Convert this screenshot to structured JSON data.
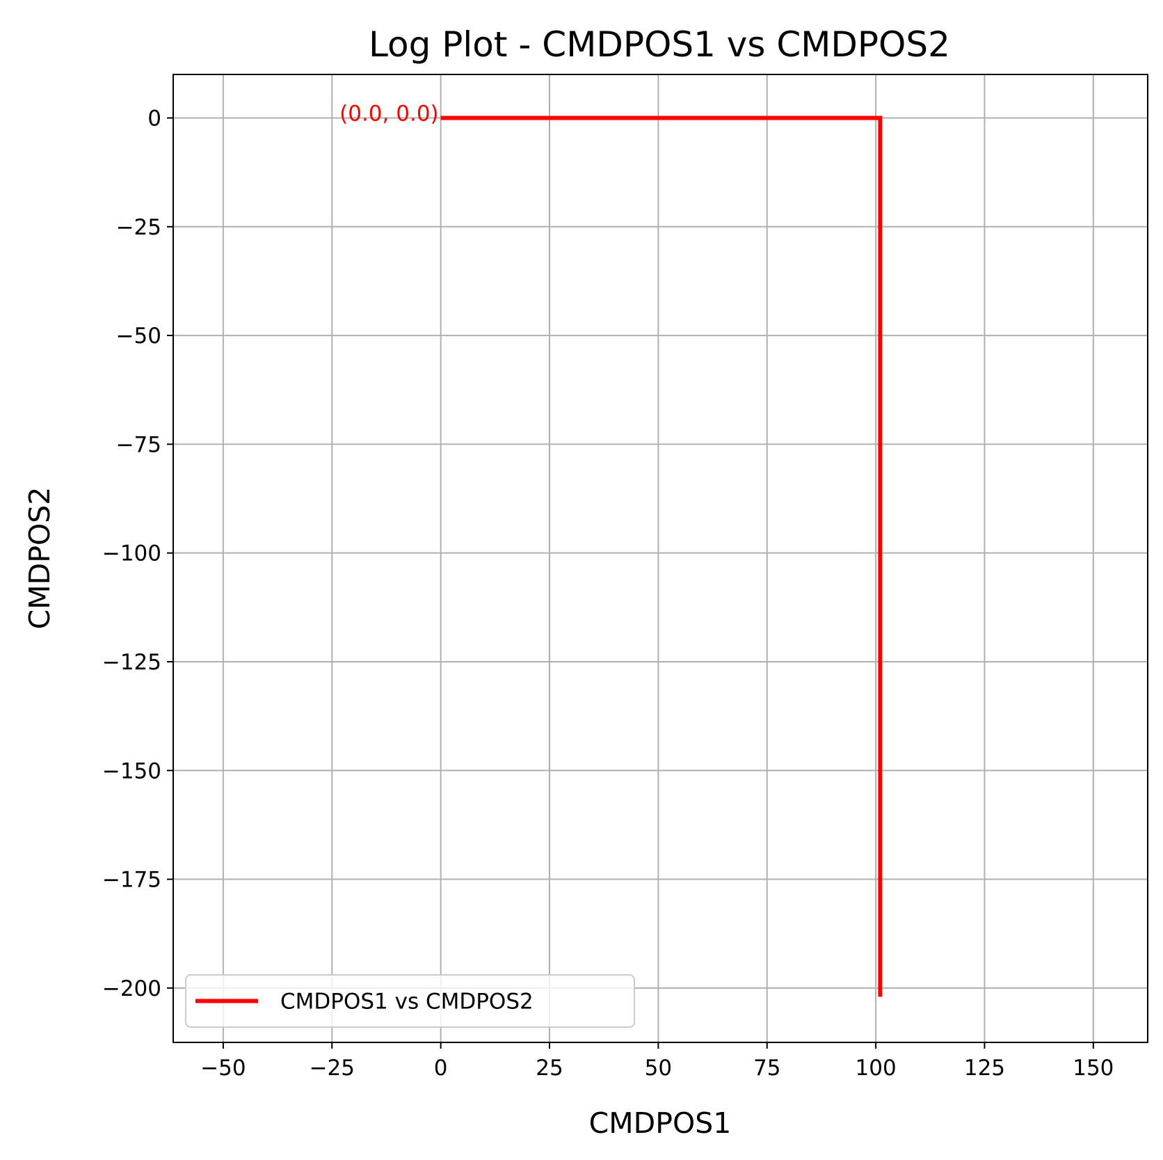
{
  "chart_data": {
    "type": "line",
    "title": "Log Plot - CMDPOS1 vs CMDPOS2",
    "xlabel": "CMDPOS1",
    "ylabel": "CMDPOS2",
    "xlim": [
      -61.5,
      162.5
    ],
    "ylim": [
      -212.5,
      10
    ],
    "x_ticks": [
      -50,
      -25,
      0,
      25,
      50,
      75,
      100,
      125,
      150
    ],
    "x_tick_labels": [
      "−50",
      "−25",
      "0",
      "25",
      "50",
      "75",
      "100",
      "125",
      "150"
    ],
    "y_ticks": [
      0,
      -25,
      -50,
      -75,
      -100,
      -125,
      -150,
      -175,
      -200
    ],
    "y_tick_labels": [
      "0",
      "−25",
      "−50",
      "−75",
      "−100",
      "−125",
      "−150",
      "−175",
      "−200"
    ],
    "grid": true,
    "legend_position": "lower-left",
    "series": [
      {
        "name": "CMDPOS1 vs CMDPOS2",
        "color": "#ff0000",
        "x": [
          0,
          101,
          101
        ],
        "y": [
          0,
          0,
          -202
        ]
      }
    ],
    "annotations": [
      {
        "text": "(0.0, 0.0)",
        "x": 0,
        "y": 0,
        "color": "#ff0000"
      }
    ]
  }
}
